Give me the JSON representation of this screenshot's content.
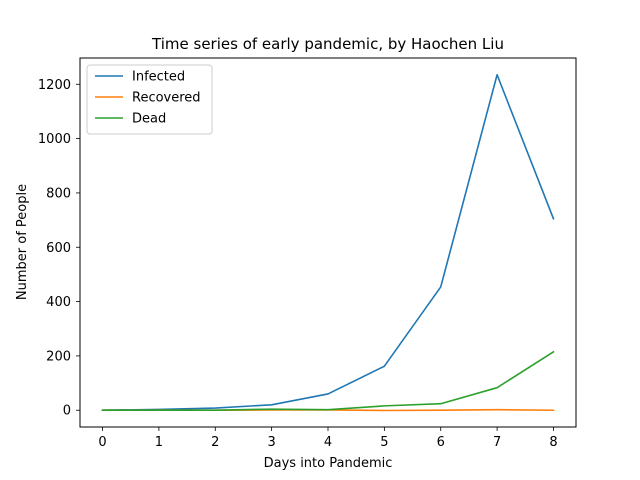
{
  "chart_data": {
    "type": "line",
    "title": "Time series of early pandemic, by Haochen Liu",
    "xlabel": "Days into Pandemic",
    "ylabel": "Number of People",
    "x": [
      0,
      1,
      2,
      3,
      4,
      5,
      6,
      7,
      8
    ],
    "xlim": [
      -0.4,
      8.4
    ],
    "ylim": [
      -61.75,
      1296.75
    ],
    "xticks": [
      0,
      1,
      2,
      3,
      4,
      5,
      6,
      7,
      8
    ],
    "yticks": [
      0,
      200,
      400,
      600,
      800,
      1000,
      1200
    ],
    "grid": false,
    "legend_position": "top-left",
    "series": [
      {
        "name": "Infected",
        "color": "#1f77b4",
        "values": [
          0,
          3,
          8,
          20,
          60,
          162,
          454,
          1235,
          705
        ]
      },
      {
        "name": "Recovered",
        "color": "#ff7f0e",
        "values": [
          0,
          0,
          0,
          1,
          1,
          -1,
          0,
          2,
          0
        ]
      },
      {
        "name": "Dead",
        "color": "#2ca02c",
        "values": [
          0,
          0,
          0,
          4,
          2,
          16,
          24,
          83,
          215
        ]
      }
    ]
  }
}
